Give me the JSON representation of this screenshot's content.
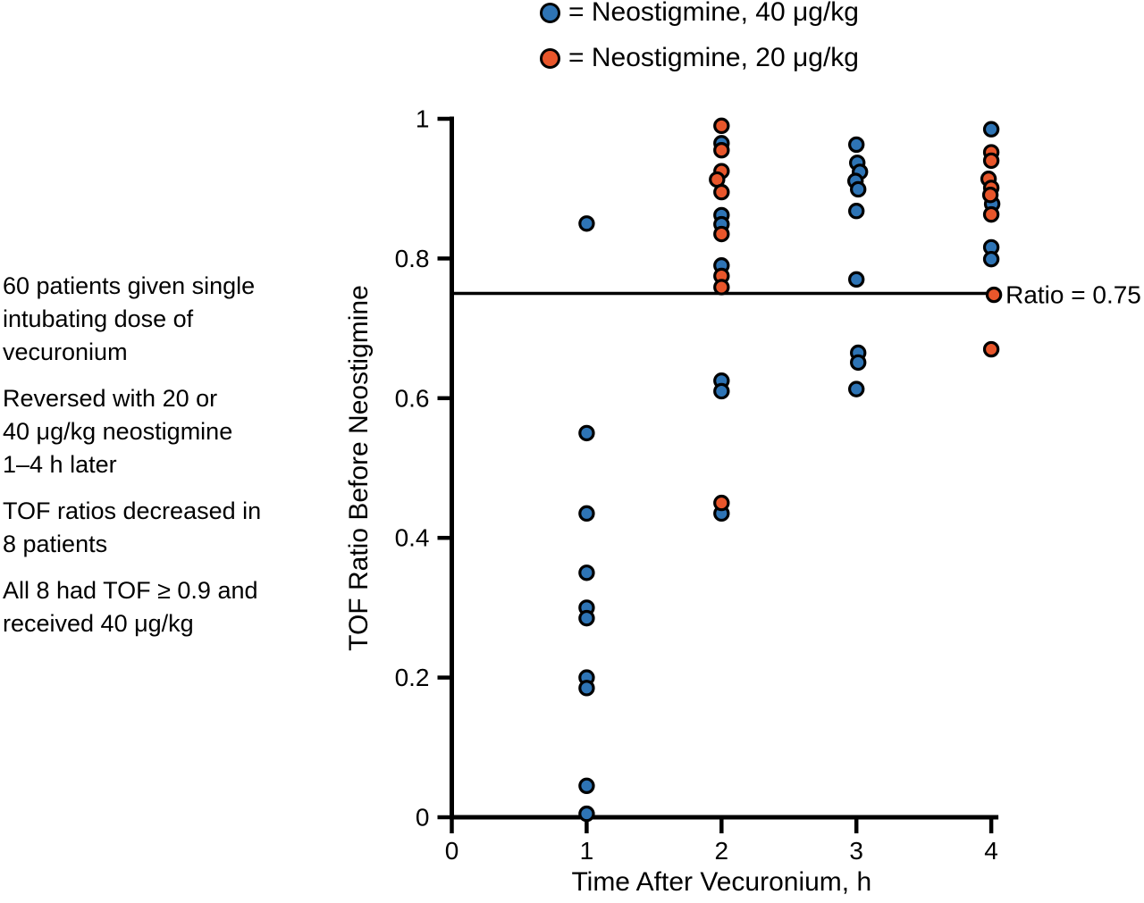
{
  "figure": {
    "background": "#ffffff"
  },
  "legend": {
    "items": [
      {
        "symbol": "circle",
        "color": "#2e74b5",
        "label": "= Neostigmine, 40 μg/kg"
      },
      {
        "symbol": "circle",
        "color": "#e8562b",
        "label": "= Neostigmine, 20 μg/kg"
      }
    ]
  },
  "annotations": [
    "60 patients given single\nintubating dose of\nvecuronium",
    "Reversed with 20 or\n40 μg/kg neostigmine\n1–4 h later",
    "TOF ratios decreased in\n8 patients",
    "All 8 had TOF ≥ 0.9 and\nreceived 40 μg/kg"
  ],
  "chart_data": {
    "type": "scatter",
    "title": "",
    "xlabel": "Time After Vecuronium, h",
    "ylabel": "TOF Ratio Before Neostigmine",
    "xlim": [
      0,
      4
    ],
    "ylim": [
      0,
      1
    ],
    "grid": false,
    "x_ticks": [
      0,
      1,
      2,
      3,
      4
    ],
    "x_tick_labels": [
      "0",
      "1",
      "2",
      "3",
      "4"
    ],
    "y_ticks": [
      0,
      0.2,
      0.4,
      0.6,
      0.8,
      1
    ],
    "y_tick_labels": [
      "0",
      "0.2",
      "0.4",
      "0.6",
      "0.8",
      "1"
    ],
    "reference_line": {
      "y": 0.75,
      "label": "Ratio = 0.75"
    },
    "point_outline": "#000000",
    "series": [
      {
        "name": "Neostigmine, 40 μg/kg",
        "color": "#2e74b5",
        "points": [
          [
            1,
            0.85
          ],
          [
            1,
            0.55
          ],
          [
            1,
            0.435
          ],
          [
            1,
            0.35
          ],
          [
            1,
            0.3
          ],
          [
            1,
            0.285
          ],
          [
            1,
            0.2
          ],
          [
            1,
            0.185
          ],
          [
            1,
            0.045
          ],
          [
            1,
            0.005
          ],
          [
            2,
            0.965
          ],
          [
            2,
            0.862
          ],
          [
            2,
            0.849
          ],
          [
            2,
            0.79
          ],
          [
            2,
            0.625
          ],
          [
            2,
            0.61
          ],
          [
            2,
            0.435
          ],
          [
            3,
            0.963
          ],
          [
            3,
            0.937,
            1
          ],
          [
            3,
            0.924,
            4
          ],
          [
            3,
            0.911,
            -1
          ],
          [
            3,
            0.899,
            2
          ],
          [
            3,
            0.868
          ],
          [
            3,
            0.77
          ],
          [
            3,
            0.665,
            2
          ],
          [
            3,
            0.651,
            2
          ],
          [
            3,
            0.613
          ],
          [
            4,
            0.985
          ],
          [
            4,
            0.878,
            1
          ],
          [
            4,
            0.816
          ],
          [
            4,
            0.799
          ]
        ]
      },
      {
        "name": "Neostigmine, 20 μg/kg",
        "color": "#e8562b",
        "points": [
          [
            2,
            0.99
          ],
          [
            2,
            0.955
          ],
          [
            2,
            0.925
          ],
          [
            2,
            0.913,
            -5
          ],
          [
            2,
            0.895
          ],
          [
            2,
            0.835
          ],
          [
            2,
            0.775
          ],
          [
            2,
            0.759
          ],
          [
            2,
            0.45
          ],
          [
            4,
            0.952
          ],
          [
            4,
            0.94
          ],
          [
            4,
            0.914,
            -3
          ],
          [
            4,
            0.901
          ],
          [
            4,
            0.891,
            -1
          ],
          [
            4,
            0.863
          ],
          [
            4,
            0.748,
            3
          ],
          [
            4,
            0.67
          ]
        ]
      }
    ]
  }
}
